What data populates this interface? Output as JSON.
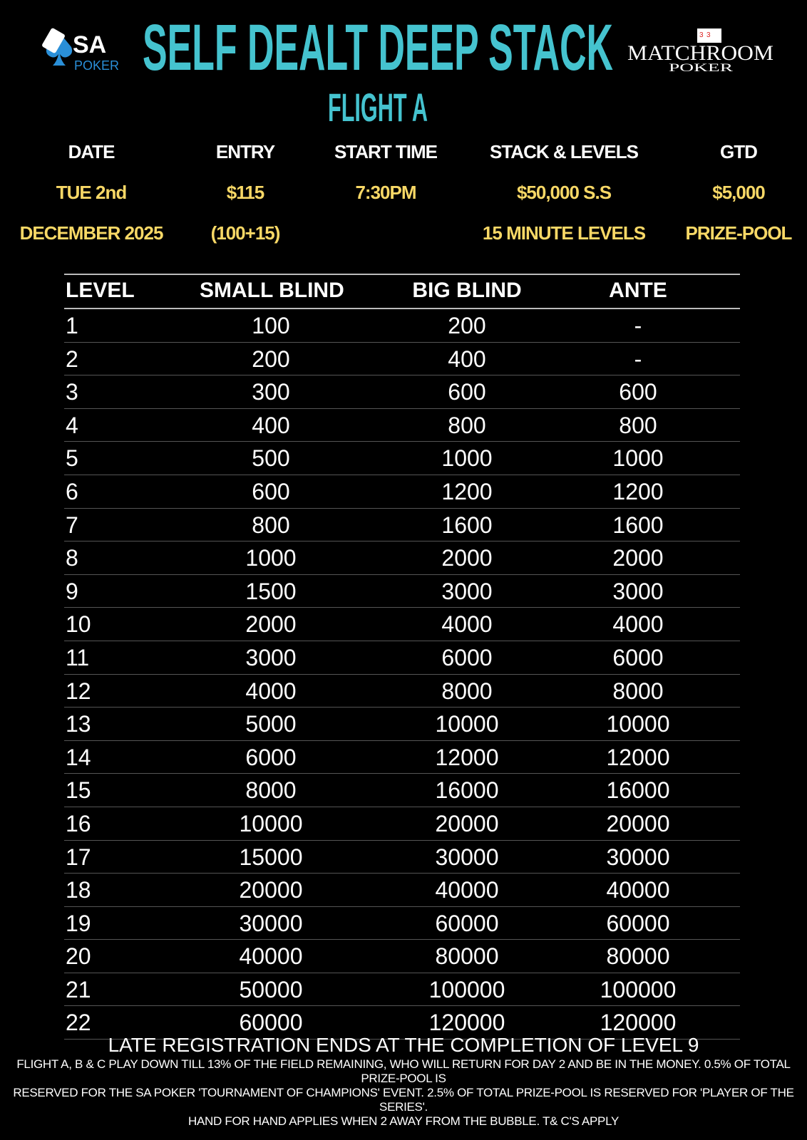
{
  "logos": {
    "left": "SA POKER",
    "right": "MATCHROOM POKER"
  },
  "title": "SELF DEALT DEEP STACK",
  "subtitle": "FLIGHT A",
  "info": [
    {
      "label": "DATE",
      "line1": "TUE 2nd",
      "line2": "DECEMBER 2025"
    },
    {
      "label": "ENTRY",
      "line1": "$115",
      "line2": "(100+15)"
    },
    {
      "label": "START TIME",
      "line1": "7:30PM",
      "line2": ""
    },
    {
      "label": "STACK & LEVELS",
      "line1": "$50,000 S.S",
      "line2": "15 MINUTE LEVELS"
    },
    {
      "label": "GTD",
      "line1": "$5,000",
      "line2": "PRIZE-POOL"
    }
  ],
  "table": {
    "headers": [
      "LEVEL",
      "SMALL BLIND",
      "BIG BLIND",
      "ANTE"
    ],
    "rows": [
      [
        "1",
        "100",
        "200",
        "-"
      ],
      [
        "2",
        "200",
        "400",
        "-"
      ],
      [
        "3",
        "300",
        "600",
        "600"
      ],
      [
        "4",
        "400",
        "800",
        "800"
      ],
      [
        "5",
        "500",
        "1000",
        "1000"
      ],
      [
        "6",
        "600",
        "1200",
        "1200"
      ],
      [
        "7",
        "800",
        "1600",
        "1600"
      ],
      [
        "8",
        "1000",
        "2000",
        "2000"
      ],
      [
        "9",
        "1500",
        "3000",
        "3000"
      ],
      [
        "10",
        "2000",
        "4000",
        "4000"
      ],
      [
        "11",
        "3000",
        "6000",
        "6000"
      ],
      [
        "12",
        "4000",
        "8000",
        "8000"
      ],
      [
        "13",
        "5000",
        "10000",
        "10000"
      ],
      [
        "14",
        "6000",
        "12000",
        "12000"
      ],
      [
        "15",
        "8000",
        "16000",
        "16000"
      ],
      [
        "16",
        "10000",
        "20000",
        "20000"
      ],
      [
        "17",
        "15000",
        "30000",
        "30000"
      ],
      [
        "18",
        "20000",
        "40000",
        "40000"
      ],
      [
        "19",
        "30000",
        "60000",
        "60000"
      ],
      [
        "20",
        "40000",
        "80000",
        "80000"
      ],
      [
        "21",
        "50000",
        "100000",
        "100000"
      ],
      [
        "22",
        "60000",
        "120000",
        "120000"
      ]
    ]
  },
  "footer": {
    "late_reg": "LATE REGISTRATION ENDS AT THE COMPLETION OF LEVEL 9",
    "notes": [
      "FLIGHT A, B & C PLAY DOWN TILL 13% OF THE FIELD REMAINING, WHO WILL RETURN FOR DAY 2 AND BE IN THE MONEY. 0.5% OF TOTAL PRIZE-POOL IS",
      "RESERVED FOR THE SA POKER 'TOURNAMENT OF CHAMPIONS' EVENT. 2.5% OF TOTAL PRIZE-POOL IS RESERVED FOR 'PLAYER OF THE SERIES'.",
      "HAND FOR HAND APPLIES WHEN 2 AWAY FROM THE BUBBLE. T& C'S APPLY"
    ]
  },
  "colors": {
    "title": "#45c3cf",
    "values": "#f8d866",
    "background": "#000000"
  }
}
